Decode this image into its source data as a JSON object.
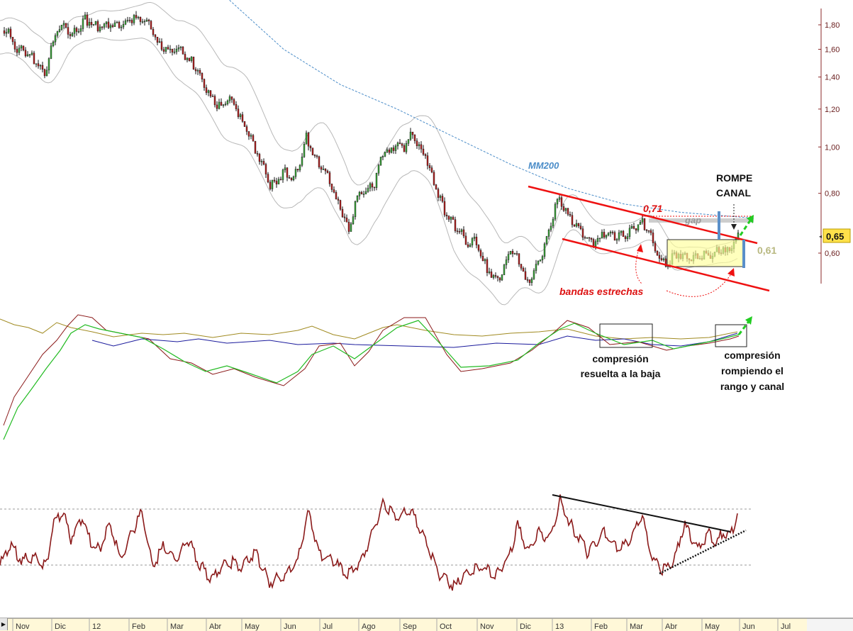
{
  "chart_data": {
    "type": "candlestick",
    "y_axis": {
      "ticks": [
        "1,80",
        "1,60",
        "1,40",
        "1,20",
        "1,00",
        "0,80",
        "0,60"
      ],
      "tick_values": [
        1.8,
        1.6,
        1.4,
        1.2,
        1.0,
        0.8,
        0.6
      ],
      "scale": "log",
      "position": "right"
    },
    "last_price": {
      "label": "0,65",
      "value": 0.65,
      "color": "#ffe14a"
    },
    "x_axis": {
      "labels": [
        "Nov",
        "Dic",
        "12",
        "Feb",
        "Mar",
        "Abr",
        "May",
        "Jun",
        "Jul",
        "Ago",
        "Sep",
        "Oct",
        "Nov",
        "Dic",
        "13",
        "Feb",
        "Mar",
        "Abr",
        "May",
        "Jun",
        "Jul"
      ]
    },
    "price_series": {
      "x": [
        0,
        8,
        20,
        35,
        50,
        63,
        70,
        80,
        92,
        100,
        110,
        120,
        132,
        145,
        158,
        170,
        182,
        195,
        205,
        212,
        222,
        232,
        242,
        255,
        263,
        272,
        282,
        292,
        302,
        312,
        322,
        332,
        342,
        352,
        362,
        372,
        382,
        392,
        402,
        412,
        422,
        432,
        438,
        445,
        455,
        465,
        475,
        485,
        492,
        500,
        510,
        520,
        530,
        540,
        550,
        560,
        570,
        580,
        590,
        600,
        610,
        620,
        630,
        640,
        650,
        660,
        670,
        680,
        690,
        700,
        710,
        720,
        728,
        735,
        742,
        750,
        760,
        770,
        780,
        788,
        795,
        805,
        815,
        825,
        835,
        845,
        855,
        865,
        875,
        885,
        895,
        905,
        915,
        925,
        935,
        945,
        955,
        965,
        975,
        985,
        995,
        1005,
        1015,
        1025,
        1032,
        1038,
        1042
      ],
      "values": [
        1.7,
        1.78,
        1.62,
        1.58,
        1.52,
        1.42,
        1.55,
        1.75,
        1.8,
        1.7,
        1.77,
        1.85,
        1.8,
        1.78,
        1.82,
        1.8,
        1.84,
        1.86,
        1.82,
        1.78,
        1.65,
        1.62,
        1.58,
        1.6,
        1.52,
        1.5,
        1.4,
        1.3,
        1.25,
        1.2,
        1.28,
        1.22,
        1.13,
        1.05,
        0.98,
        0.9,
        0.83,
        0.86,
        0.9,
        0.85,
        0.92,
        1.05,
        1.0,
        0.95,
        0.9,
        0.85,
        0.77,
        0.72,
        0.65,
        0.76,
        0.8,
        0.81,
        0.85,
        0.98,
        0.97,
        1.02,
        1.0,
        1.06,
        1.01,
        0.96,
        0.86,
        0.78,
        0.72,
        0.69,
        0.66,
        0.63,
        0.64,
        0.58,
        0.55,
        0.53,
        0.55,
        0.62,
        0.59,
        0.56,
        0.52,
        0.54,
        0.57,
        0.63,
        0.72,
        0.78,
        0.75,
        0.7,
        0.67,
        0.65,
        0.63,
        0.64,
        0.66,
        0.65,
        0.65,
        0.66,
        0.68,
        0.7,
        0.67,
        0.6,
        0.57,
        0.58,
        0.6,
        0.59,
        0.58,
        0.6,
        0.59,
        0.6,
        0.61,
        0.6,
        0.62,
        0.64,
        0.65
      ]
    },
    "mm200": {
      "label": "MM200",
      "color": "#4a8cc8"
    },
    "levels": [
      {
        "label": "0,71",
        "value": 0.71,
        "color": "#dd1111"
      },
      {
        "label": "0,61",
        "value": 0.61,
        "color": "#b8b880"
      }
    ],
    "annotations": {
      "gap": "gap",
      "rompe_canal_1": "ROMPE",
      "rompe_canal_2": "CANAL",
      "bandas": "bandas estrechas",
      "compresion_baja": [
        "compresión",
        "resuelta a la baja"
      ],
      "compresion_rango": [
        "compresión",
        "rompiendo el",
        "rango y canal"
      ]
    }
  }
}
